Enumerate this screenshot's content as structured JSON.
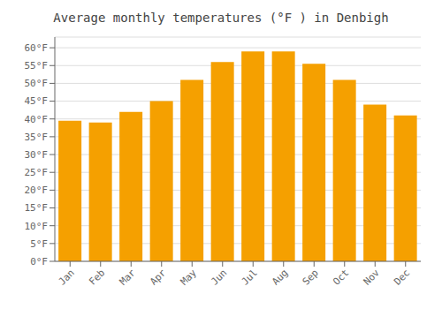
{
  "chart_data": {
    "type": "bar",
    "title": "Average monthly temperatures (°F ) in Denbigh",
    "categories": [
      "Jan",
      "Feb",
      "Mar",
      "Apr",
      "May",
      "Jun",
      "Jul",
      "Aug",
      "Sep",
      "Oct",
      "Nov",
      "Dec"
    ],
    "values": [
      39.5,
      39.0,
      42.0,
      45.0,
      51.0,
      56.0,
      59.0,
      59.0,
      55.5,
      51.0,
      44.0,
      41.0
    ],
    "color": "#F5A000",
    "ylim": [
      0,
      63
    ],
    "yticks": [
      {
        "value": 0,
        "label": "0°F"
      },
      {
        "value": 5,
        "label": "5°F"
      },
      {
        "value": 10,
        "label": "10°F"
      },
      {
        "value": 15,
        "label": "15°F"
      },
      {
        "value": 20,
        "label": "20°F"
      },
      {
        "value": 25,
        "label": "25°F"
      },
      {
        "value": 30,
        "label": "30°F"
      },
      {
        "value": 35,
        "label": "35°F"
      },
      {
        "value": 40,
        "label": "40°F"
      },
      {
        "value": 45,
        "label": "45°F"
      },
      {
        "value": 50,
        "label": "50°F"
      },
      {
        "value": 55,
        "label": "55°F"
      },
      {
        "value": 60,
        "label": "60°F"
      }
    ],
    "grid": true
  }
}
